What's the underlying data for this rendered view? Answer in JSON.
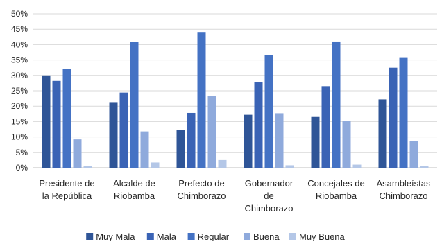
{
  "chart_data": {
    "type": "bar",
    "title": "",
    "xlabel": "",
    "ylabel": "",
    "ylim": [
      0,
      0.5
    ],
    "yticks": [
      "0%",
      "5%",
      "10%",
      "15%",
      "20%",
      "25%",
      "30%",
      "35%",
      "40%",
      "45%",
      "50%"
    ],
    "grid": true,
    "legend_position": "bottom",
    "categories": [
      [
        "Presidente de",
        "la República"
      ],
      [
        "Alcalde de",
        "Riobamba"
      ],
      [
        "Prefecto de",
        "Chimborazo"
      ],
      [
        "Gobernador",
        "de",
        "Chimborazo"
      ],
      [
        "Concejales de",
        "Riobamba"
      ],
      [
        "Asambleístas",
        "Chimborazo"
      ]
    ],
    "series": [
      {
        "name": "Muy Mala",
        "color": "#2F5597",
        "values": [
          0.3,
          0.213,
          0.122,
          0.172,
          0.165,
          0.222
        ]
      },
      {
        "name": "Mala",
        "color": "#3A63B5",
        "values": [
          0.282,
          0.244,
          0.178,
          0.277,
          0.265,
          0.325
        ]
      },
      {
        "name": "Regular",
        "color": "#4472C4",
        "values": [
          0.321,
          0.408,
          0.441,
          0.366,
          0.41,
          0.359
        ]
      },
      {
        "name": "Buena",
        "color": "#8FAADC",
        "values": [
          0.092,
          0.118,
          0.232,
          0.177,
          0.152,
          0.087
        ]
      },
      {
        "name": "Muy Buena",
        "color": "#B4C7E7",
        "values": [
          0.005,
          0.017,
          0.025,
          0.008,
          0.01,
          0.005
        ]
      }
    ]
  }
}
